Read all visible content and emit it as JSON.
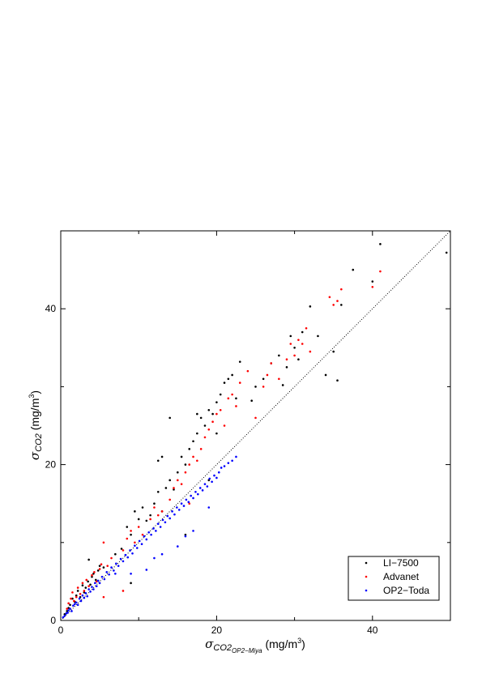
{
  "chart_data": {
    "type": "scatter",
    "xlabel": "σCO2OP2-Miya (mg/m3)",
    "ylabel": "σCO2 (mg/m3)",
    "xlim": [
      0,
      50
    ],
    "ylim": [
      0,
      50
    ],
    "x_ticks": [
      "0",
      "20",
      "40"
    ],
    "y_ticks": [
      "0",
      "20",
      "40"
    ],
    "legend_position": "bottom-right",
    "reference_line": "1:1 dotted",
    "series": [
      {
        "name": "LI−7500",
        "color": "#000000",
        "points": [
          [
            0.5,
            0.8
          ],
          [
            0.8,
            1.2
          ],
          [
            1.0,
            1.6
          ],
          [
            1.2,
            2.0
          ],
          [
            1.5,
            2.8
          ],
          [
            1.8,
            2.4
          ],
          [
            2.0,
            3.2
          ],
          [
            2.2,
            3.8
          ],
          [
            2.5,
            3.0
          ],
          [
            2.8,
            4.5
          ],
          [
            3.0,
            3.6
          ],
          [
            3.2,
            4.2
          ],
          [
            3.5,
            5.0
          ],
          [
            3.8,
            4.6
          ],
          [
            4.0,
            5.6
          ],
          [
            4.2,
            6.0
          ],
          [
            4.5,
            5.2
          ],
          [
            4.8,
            6.4
          ],
          [
            5.0,
            7.0
          ],
          [
            5.5,
            6.8
          ],
          [
            3.6,
            7.8
          ],
          [
            7.0,
            8.5
          ],
          [
            7.8,
            9.2
          ],
          [
            8.5,
            12.0
          ],
          [
            9.0,
            11.0
          ],
          [
            9.5,
            14.0
          ],
          [
            10.0,
            13.0
          ],
          [
            10.5,
            14.5
          ],
          [
            11.0,
            12.8
          ],
          [
            11.5,
            13.5
          ],
          [
            12.0,
            15.0
          ],
          [
            12.5,
            16.5
          ],
          [
            13.0,
            14.0
          ],
          [
            13.5,
            17.0
          ],
          [
            14.0,
            18.0
          ],
          [
            14.5,
            16.8
          ],
          [
            15.0,
            19.0
          ],
          [
            15.5,
            21.0
          ],
          [
            16.0,
            20.0
          ],
          [
            16.5,
            22.0
          ],
          [
            17.0,
            23.0
          ],
          [
            17.5,
            24.0
          ],
          [
            18.0,
            26.0
          ],
          [
            18.5,
            25.0
          ],
          [
            19.0,
            27.0
          ],
          [
            19.5,
            26.5
          ],
          [
            20.0,
            28.0
          ],
          [
            20.5,
            29.0
          ],
          [
            21.0,
            30.5
          ],
          [
            21.5,
            31.0
          ],
          [
            22.0,
            31.5
          ],
          [
            22.5,
            28.5
          ],
          [
            23.0,
            33.2
          ],
          [
            24.5,
            28.2
          ],
          [
            25.0,
            30.0
          ],
          [
            26.0,
            31.0
          ],
          [
            27.0,
            33.0
          ],
          [
            28.0,
            34.0
          ],
          [
            28.5,
            30.2
          ],
          [
            29.0,
            32.5
          ],
          [
            29.5,
            36.5
          ],
          [
            30.0,
            35.0
          ],
          [
            30.5,
            33.5
          ],
          [
            31.0,
            37.0
          ],
          [
            32.0,
            40.3
          ],
          [
            33.0,
            36.5
          ],
          [
            34.0,
            31.5
          ],
          [
            35.0,
            34.5
          ],
          [
            35.5,
            30.8
          ],
          [
            36.0,
            40.5
          ],
          [
            37.5,
            45.0
          ],
          [
            40.0,
            43.5
          ],
          [
            41.0,
            48.3
          ],
          [
            49.5,
            47.2
          ],
          [
            16.0,
            11.0
          ],
          [
            12.5,
            20.5
          ],
          [
            14.0,
            26.0
          ],
          [
            17.5,
            26.5
          ],
          [
            20.0,
            24.0
          ],
          [
            9.0,
            4.8
          ],
          [
            13.0,
            21.0
          ],
          [
            19.0,
            18.0
          ]
        ]
      },
      {
        "name": "Advanet",
        "color": "#ff0000",
        "points": [
          [
            0.8,
            1.5
          ],
          [
            1.0,
            2.2
          ],
          [
            1.3,
            2.8
          ],
          [
            1.5,
            3.6
          ],
          [
            1.7,
            2.5
          ],
          [
            2.0,
            3.0
          ],
          [
            2.2,
            4.2
          ],
          [
            2.5,
            3.4
          ],
          [
            2.8,
            4.8
          ],
          [
            3.0,
            3.8
          ],
          [
            3.3,
            5.2
          ],
          [
            3.6,
            4.4
          ],
          [
            4.0,
            5.8
          ],
          [
            4.3,
            6.2
          ],
          [
            4.6,
            5.0
          ],
          [
            5.0,
            6.6
          ],
          [
            5.5,
            10.0
          ],
          [
            5.2,
            7.2
          ],
          [
            6.0,
            7.0
          ],
          [
            6.5,
            8.0
          ],
          [
            8.0,
            9.0
          ],
          [
            8.5,
            10.5
          ],
          [
            9.0,
            11.5
          ],
          [
            9.5,
            10.0
          ],
          [
            10.0,
            12.0
          ],
          [
            10.5,
            11.0
          ],
          [
            11.5,
            13.0
          ],
          [
            12.0,
            14.5
          ],
          [
            12.5,
            13.5
          ],
          [
            13.0,
            14.0
          ],
          [
            14.0,
            15.5
          ],
          [
            14.5,
            17.0
          ],
          [
            15.0,
            18.0
          ],
          [
            15.5,
            17.5
          ],
          [
            16.0,
            19.0
          ],
          [
            16.5,
            20.0
          ],
          [
            17.0,
            21.0
          ],
          [
            17.5,
            20.5
          ],
          [
            18.0,
            22.0
          ],
          [
            18.5,
            23.5
          ],
          [
            19.0,
            24.5
          ],
          [
            19.5,
            25.5
          ],
          [
            20.0,
            26.5
          ],
          [
            20.5,
            27.0
          ],
          [
            21.0,
            25.0
          ],
          [
            21.5,
            28.5
          ],
          [
            22.0,
            29.0
          ],
          [
            22.5,
            27.5
          ],
          [
            23.0,
            30.5
          ],
          [
            24.0,
            32.0
          ],
          [
            25.0,
            26.0
          ],
          [
            26.0,
            30.0
          ],
          [
            26.5,
            31.5
          ],
          [
            27.0,
            33.0
          ],
          [
            28.0,
            31.0
          ],
          [
            29.0,
            33.5
          ],
          [
            29.5,
            35.5
          ],
          [
            30.0,
            34.0
          ],
          [
            30.5,
            36.0
          ],
          [
            31.0,
            35.5
          ],
          [
            31.5,
            37.5
          ],
          [
            32.0,
            34.5
          ],
          [
            34.5,
            41.5
          ],
          [
            35.0,
            40.5
          ],
          [
            35.5,
            41.0
          ],
          [
            36.0,
            42.5
          ],
          [
            40.0,
            42.8
          ],
          [
            41.0,
            44.8
          ],
          [
            5.5,
            3.0
          ],
          [
            8.0,
            3.8
          ],
          [
            16.5,
            15.0
          ]
        ]
      },
      {
        "name": "OP2−Toda",
        "color": "#0000ff",
        "points": [
          [
            0.3,
            0.4
          ],
          [
            0.5,
            0.6
          ],
          [
            0.7,
            0.9
          ],
          [
            0.9,
            1.0
          ],
          [
            1.0,
            1.3
          ],
          [
            1.2,
            1.5
          ],
          [
            1.4,
            1.2
          ],
          [
            1.6,
            1.9
          ],
          [
            1.8,
            2.1
          ],
          [
            2.0,
            2.3
          ],
          [
            2.2,
            2.0
          ],
          [
            2.4,
            2.8
          ],
          [
            2.6,
            2.5
          ],
          [
            2.8,
            3.2
          ],
          [
            3.0,
            2.9
          ],
          [
            3.2,
            3.5
          ],
          [
            3.4,
            3.1
          ],
          [
            3.6,
            4.0
          ],
          [
            3.8,
            3.7
          ],
          [
            4.0,
            4.3
          ],
          [
            4.2,
            4.0
          ],
          [
            4.4,
            4.8
          ],
          [
            4.6,
            4.4
          ],
          [
            4.8,
            5.1
          ],
          [
            5.0,
            4.8
          ],
          [
            5.3,
            5.6
          ],
          [
            5.6,
            5.3
          ],
          [
            5.9,
            6.2
          ],
          [
            6.2,
            5.9
          ],
          [
            6.5,
            6.8
          ],
          [
            6.8,
            6.4
          ],
          [
            7.1,
            7.3
          ],
          [
            7.4,
            7.0
          ],
          [
            7.7,
            7.9
          ],
          [
            8.0,
            7.6
          ],
          [
            8.3,
            8.4
          ],
          [
            8.6,
            8.1
          ],
          [
            8.9,
            9.0
          ],
          [
            9.2,
            8.6
          ],
          [
            9.5,
            9.6
          ],
          [
            9.8,
            9.3
          ],
          [
            10.1,
            10.2
          ],
          [
            10.4,
            9.8
          ],
          [
            10.7,
            10.8
          ],
          [
            11.0,
            10.4
          ],
          [
            11.3,
            11.3
          ],
          [
            11.6,
            11.0
          ],
          [
            11.9,
            11.8
          ],
          [
            12.2,
            11.5
          ],
          [
            12.5,
            12.4
          ],
          [
            12.8,
            12.0
          ],
          [
            13.1,
            12.9
          ],
          [
            13.4,
            12.6
          ],
          [
            13.7,
            13.4
          ],
          [
            14.0,
            13.1
          ],
          [
            14.3,
            14.0
          ],
          [
            14.6,
            13.6
          ],
          [
            14.9,
            14.5
          ],
          [
            15.2,
            14.2
          ],
          [
            15.5,
            15.0
          ],
          [
            15.8,
            14.7
          ],
          [
            16.1,
            15.5
          ],
          [
            16.4,
            15.2
          ],
          [
            16.7,
            16.0
          ],
          [
            17.0,
            15.7
          ],
          [
            17.3,
            16.5
          ],
          [
            17.6,
            16.2
          ],
          [
            17.9,
            17.0
          ],
          [
            18.2,
            16.7
          ],
          [
            18.5,
            17.5
          ],
          [
            18.8,
            17.2
          ],
          [
            19.1,
            18.2
          ],
          [
            19.4,
            17.8
          ],
          [
            19.7,
            18.6
          ],
          [
            20.0,
            18.3
          ],
          [
            20.3,
            19.0
          ],
          [
            20.6,
            19.6
          ],
          [
            21.0,
            19.8
          ],
          [
            21.5,
            20.2
          ],
          [
            22.0,
            20.5
          ],
          [
            22.5,
            21.0
          ],
          [
            12.0,
            8.0
          ],
          [
            11.0,
            6.5
          ],
          [
            9.0,
            6.0
          ],
          [
            7.0,
            6.0
          ],
          [
            17.0,
            11.5
          ],
          [
            15.0,
            9.5
          ],
          [
            13.0,
            8.5
          ],
          [
            19.0,
            14.5
          ],
          [
            16.0,
            10.8
          ]
        ]
      }
    ]
  }
}
